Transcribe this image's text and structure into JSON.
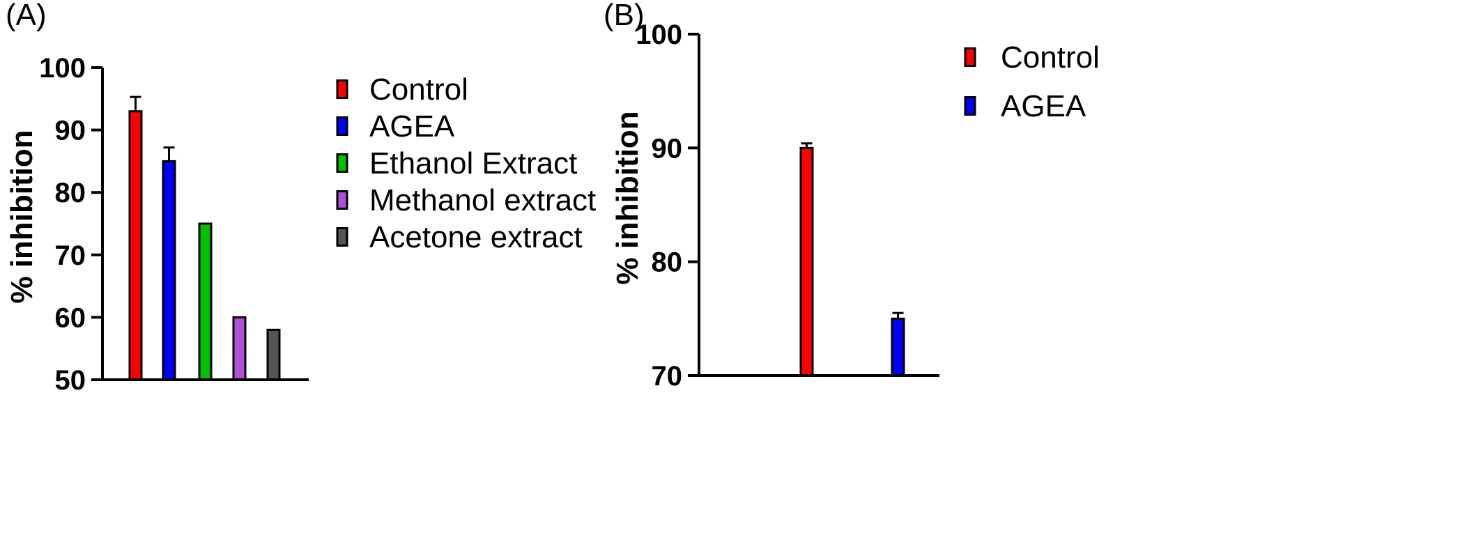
{
  "chart_data": [
    {
      "panel": "(A)",
      "type": "bar",
      "ylabel": "% inhibition",
      "ylim": [
        50,
        100
      ],
      "yticks": [
        50,
        60,
        70,
        80,
        90,
        100
      ],
      "legend_position": "right",
      "series": [
        {
          "name": "Control",
          "value": 93,
          "error": 2.3,
          "color": "#ff0000"
        },
        {
          "name": "AGEA",
          "value": 85,
          "error": 2.2,
          "color": "#0000ff"
        },
        {
          "name": "Ethanol Extract",
          "value": 75,
          "error": 0,
          "color": "#00c000"
        },
        {
          "name": "Methanol extract",
          "value": 60,
          "error": 0,
          "color": "#b050d8"
        },
        {
          "name": "Acetone extract",
          "value": 58,
          "error": 0,
          "color": "#555555"
        }
      ]
    },
    {
      "panel": "(B)",
      "type": "bar",
      "ylabel": "% inhibition",
      "ylim": [
        70,
        100
      ],
      "yticks": [
        70,
        80,
        90,
        100
      ],
      "legend_position": "top-right",
      "series": [
        {
          "name": "Control",
          "value": 90,
          "error": 0.4,
          "color": "#ff0000"
        },
        {
          "name": "AGEA",
          "value": 75,
          "error": 0.5,
          "color": "#0000ff"
        }
      ]
    }
  ]
}
